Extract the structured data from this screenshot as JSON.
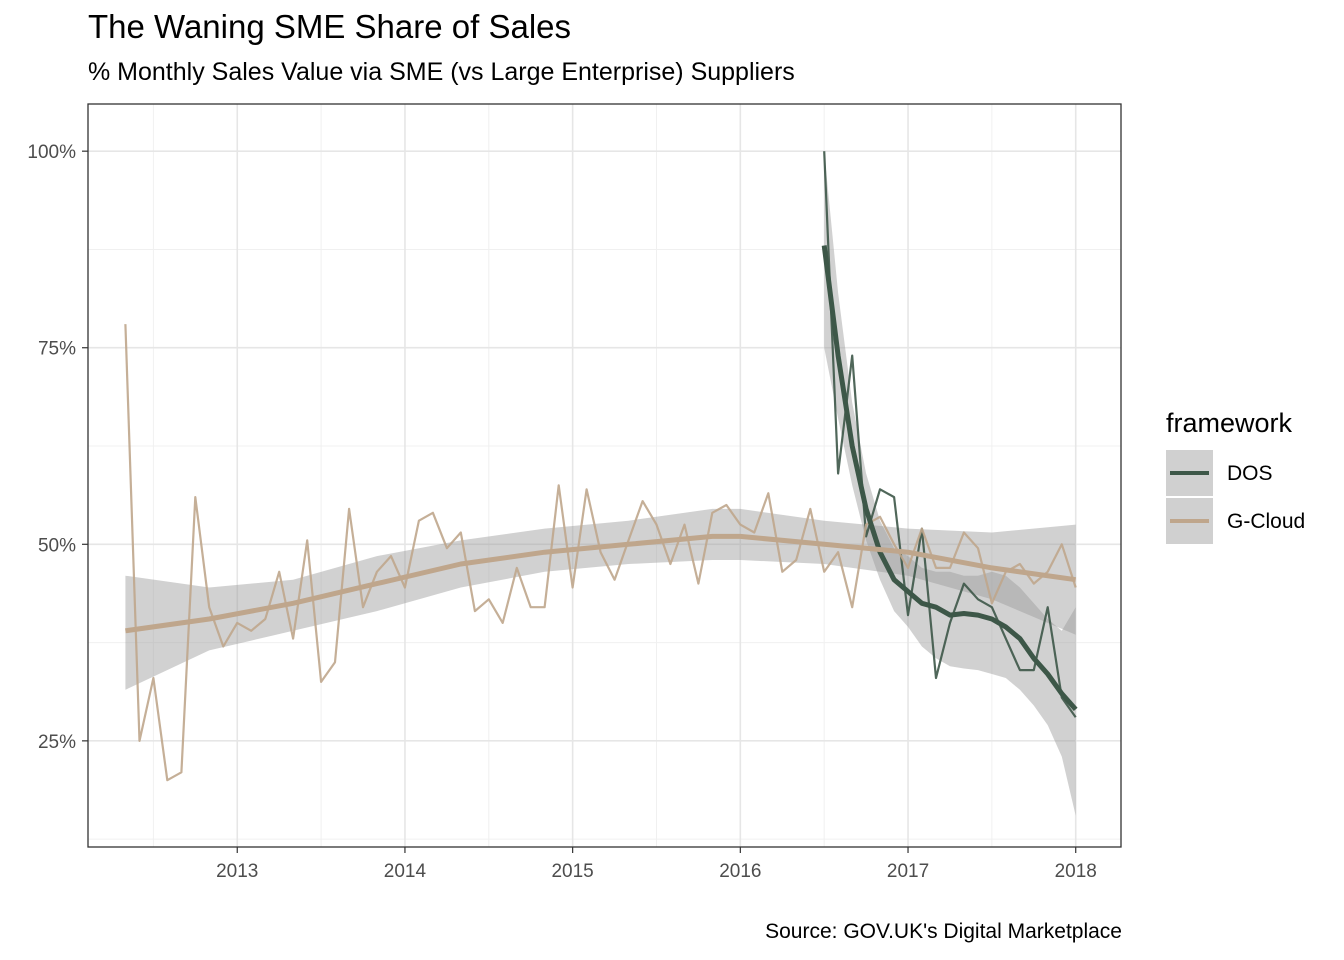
{
  "chart_data": {
    "type": "line",
    "title": "The Waning SME Share of Sales",
    "subtitle": "% Monthly Sales Value via SME (vs Large Enterprise) Suppliers",
    "caption": "Source: GOV.UK's Digital Marketplace",
    "legend_title": "framework",
    "legend_position": "right",
    "grid": true,
    "xlim": [
      2012.11,
      2018.27
    ],
    "ylim": [
      0.115,
      1.06
    ],
    "x_ticks": [
      2013,
      2014,
      2015,
      2016,
      2017,
      2018
    ],
    "x_tick_labels": [
      "2013",
      "2014",
      "2015",
      "2016",
      "2017",
      "2018"
    ],
    "y_ticks": [
      0.25,
      0.5,
      0.75,
      1.0
    ],
    "y_tick_labels": [
      "25%",
      "50%",
      "75%",
      "100%"
    ],
    "series": [
      {
        "name": "DOS",
        "color": "#3d5748",
        "x": [
          2016.5,
          2016.583,
          2016.667,
          2016.75,
          2016.833,
          2016.917,
          2017.0,
          2017.083,
          2017.167,
          2017.25,
          2017.333,
          2017.417,
          2017.5,
          2017.583,
          2017.667,
          2017.75,
          2017.833,
          2017.917,
          2018.0
        ],
        "values": [
          1.0,
          0.59,
          0.74,
          0.51,
          0.57,
          0.56,
          0.41,
          0.52,
          0.33,
          0.4,
          0.45,
          0.43,
          0.42,
          0.38,
          0.34,
          0.34,
          0.42,
          0.305,
          0.28
        ],
        "smooth": [
          0.88,
          0.74,
          0.625,
          0.545,
          0.49,
          0.455,
          0.44,
          0.425,
          0.42,
          0.41,
          0.412,
          0.41,
          0.405,
          0.395,
          0.38,
          0.355,
          0.335,
          0.31,
          0.29
        ],
        "smooth_lower": [
          0.75,
          0.66,
          0.575,
          0.505,
          0.455,
          0.415,
          0.395,
          0.37,
          0.355,
          0.345,
          0.342,
          0.34,
          0.335,
          0.33,
          0.315,
          0.295,
          0.27,
          0.23,
          0.155
        ],
        "smooth_upper": [
          1.0,
          0.82,
          0.68,
          0.59,
          0.53,
          0.495,
          0.485,
          0.47,
          0.465,
          0.465,
          0.46,
          0.46,
          0.465,
          0.46,
          0.445,
          0.425,
          0.405,
          0.39,
          0.42
        ]
      },
      {
        "name": "G-Cloud",
        "color": "#bfa68c",
        "x": [
          2012.333,
          2012.417,
          2012.5,
          2012.583,
          2012.667,
          2012.75,
          2012.833,
          2012.917,
          2013.0,
          2013.083,
          2013.167,
          2013.25,
          2013.333,
          2013.417,
          2013.5,
          2013.583,
          2013.667,
          2013.75,
          2013.833,
          2013.917,
          2014.0,
          2014.083,
          2014.167,
          2014.25,
          2014.333,
          2014.417,
          2014.5,
          2014.583,
          2014.667,
          2014.75,
          2014.833,
          2014.917,
          2015.0,
          2015.083,
          2015.167,
          2015.25,
          2015.333,
          2015.417,
          2015.5,
          2015.583,
          2015.667,
          2015.75,
          2015.833,
          2015.917,
          2016.0,
          2016.083,
          2016.167,
          2016.25,
          2016.333,
          2016.417,
          2016.5,
          2016.583,
          2016.667,
          2016.75,
          2016.833,
          2016.917,
          2017.0,
          2017.083,
          2017.167,
          2017.25,
          2017.333,
          2017.417,
          2017.5,
          2017.583,
          2017.667,
          2017.75,
          2017.833,
          2017.917,
          2018.0
        ],
        "values": [
          0.78,
          0.25,
          0.33,
          0.2,
          0.21,
          0.56,
          0.42,
          0.37,
          0.4,
          0.39,
          0.405,
          0.465,
          0.38,
          0.505,
          0.325,
          0.35,
          0.545,
          0.42,
          0.465,
          0.485,
          0.445,
          0.53,
          0.54,
          0.495,
          0.515,
          0.415,
          0.43,
          0.4,
          0.47,
          0.42,
          0.42,
          0.575,
          0.445,
          0.57,
          0.49,
          0.455,
          0.505,
          0.555,
          0.525,
          0.475,
          0.525,
          0.45,
          0.54,
          0.55,
          0.525,
          0.515,
          0.565,
          0.465,
          0.48,
          0.545,
          0.465,
          0.49,
          0.42,
          0.525,
          0.535,
          0.5,
          0.47,
          0.52,
          0.47,
          0.47,
          0.515,
          0.495,
          0.425,
          0.465,
          0.475,
          0.45,
          0.465,
          0.5,
          0.445
        ],
        "smooth": [
          0.39,
          0.405,
          0.425,
          0.45,
          0.475,
          0.49,
          0.5,
          0.51,
          0.51,
          0.5,
          0.49,
          0.47,
          0.455
        ],
        "smooth_x": [
          2012.333,
          2012.833,
          2013.333,
          2013.833,
          2014.333,
          2014.833,
          2015.333,
          2015.833,
          2016.0,
          2016.5,
          2017.0,
          2017.5,
          2018.0
        ],
        "smooth_lower": [
          0.315,
          0.365,
          0.39,
          0.415,
          0.445,
          0.465,
          0.475,
          0.48,
          0.48,
          0.475,
          0.46,
          0.43,
          0.385
        ],
        "smooth_upper": [
          0.46,
          0.445,
          0.455,
          0.485,
          0.505,
          0.52,
          0.53,
          0.545,
          0.545,
          0.53,
          0.52,
          0.515,
          0.525
        ]
      }
    ]
  }
}
